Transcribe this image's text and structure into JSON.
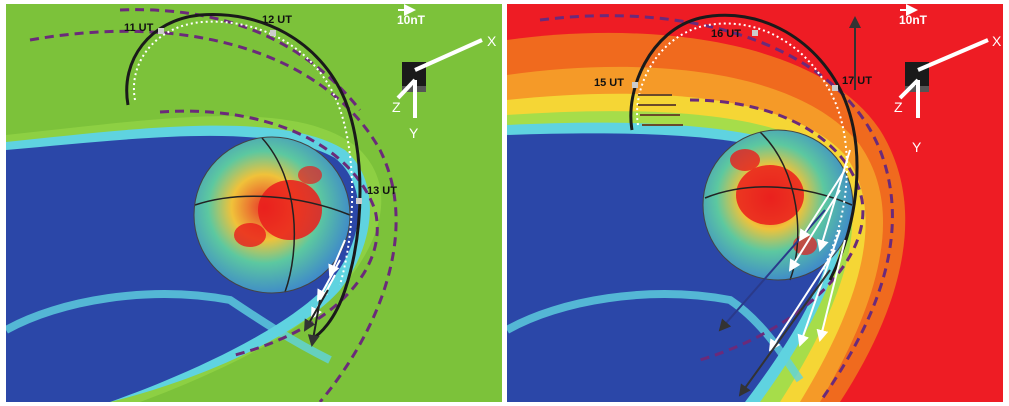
{
  "colors": {
    "panel_left_background": "#7fc23a",
    "panel_right_background": "#ee1c24",
    "magnetosphere_blue": "#2a46a6",
    "boundary_dash": "#6b2a7a",
    "trajectory_dark": "#222222",
    "vector_white": "#ffffff"
  },
  "panels": [
    {
      "time_labels": [
        "11 UT",
        "12 UT",
        "13 UT"
      ],
      "scale_label": "10nT",
      "axis_labels": {
        "x": "X",
        "y": "Y",
        "z": "Z"
      }
    },
    {
      "time_labels": [
        "15 UT",
        "16 UT",
        "17 UT"
      ],
      "scale_label": "10nT",
      "axis_labels": {
        "x": "X",
        "y": "Y",
        "z": "Z"
      }
    }
  ]
}
